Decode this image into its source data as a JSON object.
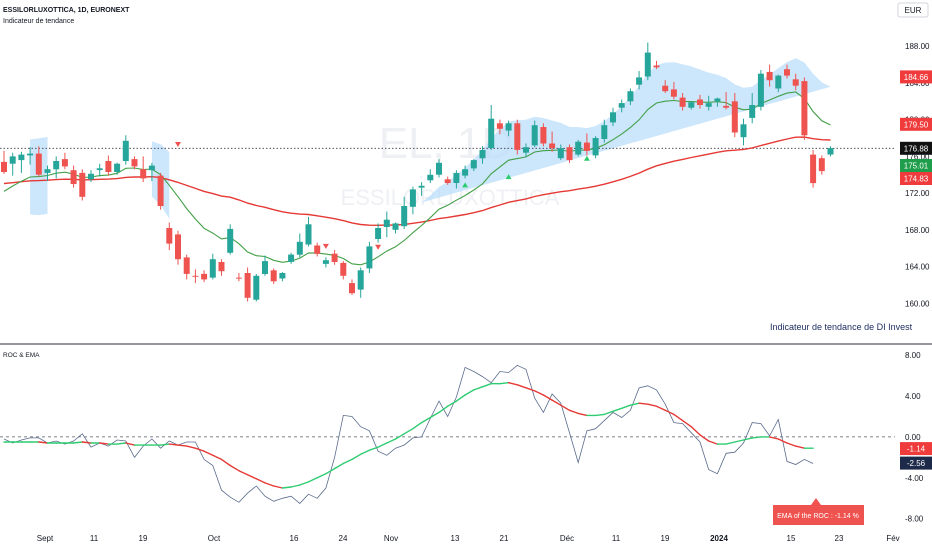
{
  "header": {
    "symbol_line": "ESSILORLUXOTTICA, 1D, EURONEXT",
    "indicator_line": "Indicateur de tendance",
    "currency": "EUR",
    "watermark_1": "EL, 1D",
    "watermark_2": "ESSILORLUXOTTICA"
  },
  "annotations": {
    "trend_caption": "Indicateur de tendance de  DI Invest",
    "lower_title": "ROC & EMA",
    "roc_ema_box": "EMA of the ROC : -1.14 %"
  },
  "colors": {
    "up": "#26a69a",
    "down": "#ef5350",
    "ema_slow": "#e53935",
    "ema_fast": "#43a047",
    "band": "#bbdefb",
    "roc": "#5b6b8c",
    "roc_ema_up": "#2ecc71",
    "roc_ema_down": "#e53935"
  },
  "price_labels": [
    {
      "text": "184.66",
      "value": 184.66,
      "color": "#ef3b3b"
    },
    {
      "text": "179.50",
      "value": 179.5,
      "color": "#ef3b3b"
    },
    {
      "text": "176.88",
      "value": 176.88,
      "color": "#111111"
    },
    {
      "text": "175.01",
      "value": 175.01,
      "color": "#1e9e4a"
    },
    {
      "text": "174.83",
      "value": 174.83,
      "color": "#ef3b3b"
    }
  ],
  "roc_labels": [
    {
      "text": "-1.14",
      "value": -1.14,
      "color": "#ef3b3b"
    },
    {
      "text": "-2.56",
      "value": -2.56,
      "color": "#1e2a4a"
    }
  ],
  "chart_data": {
    "type": "candlestick",
    "price_axis": {
      "ticks": [
        "188.00",
        "184.00",
        "180.00",
        "176.00",
        "172.00",
        "168.00",
        "164.00",
        "160.00"
      ],
      "values": [
        188,
        184,
        180,
        176,
        172,
        168,
        164,
        160
      ],
      "ylim": [
        158.4,
        190.2
      ]
    },
    "roc_axis": {
      "ticks": [
        "8.00",
        "4.00",
        "0.00",
        "-4.00",
        "-8.00"
      ],
      "values": [
        8,
        4,
        0,
        -4,
        -8
      ],
      "ylim": [
        -9.3,
        8.5
      ]
    },
    "x_labels": [
      "Sept",
      "11",
      "19",
      "Oct",
      "16",
      "24",
      "Nov",
      "13",
      "21",
      "Déc",
      "11",
      "19",
      "2024",
      "15",
      "23",
      "Fév"
    ],
    "candles": [
      {
        "o": 175.4,
        "h": 176.6,
        "l": 174.1,
        "c": 174.3
      },
      {
        "o": 175.2,
        "h": 176.4,
        "l": 173.9,
        "c": 176.0
      },
      {
        "o": 175.6,
        "h": 176.5,
        "l": 174.2,
        "c": 176.2
      },
      {
        "o": 176.1,
        "h": 177.0,
        "l": 175.1,
        "c": 176.3
      },
      {
        "o": 176.3,
        "h": 177.1,
        "l": 173.8,
        "c": 174.0
      },
      {
        "o": 174.2,
        "h": 175.0,
        "l": 173.3,
        "c": 174.6
      },
      {
        "o": 174.6,
        "h": 176.0,
        "l": 173.6,
        "c": 175.5
      },
      {
        "o": 175.7,
        "h": 176.4,
        "l": 174.6,
        "c": 174.9
      },
      {
        "o": 174.5,
        "h": 175.0,
        "l": 172.6,
        "c": 173.0
      },
      {
        "o": 174.2,
        "h": 174.6,
        "l": 171.2,
        "c": 171.6
      },
      {
        "o": 173.5,
        "h": 174.5,
        "l": 173.2,
        "c": 174.1
      },
      {
        "o": 174.5,
        "h": 175.2,
        "l": 173.8,
        "c": 174.7
      },
      {
        "o": 175.5,
        "h": 176.1,
        "l": 173.9,
        "c": 174.3
      },
      {
        "o": 174.3,
        "h": 175.3,
        "l": 174.0,
        "c": 175.2
      },
      {
        "o": 175.5,
        "h": 178.3,
        "l": 175.1,
        "c": 177.7
      },
      {
        "o": 175.7,
        "h": 176.0,
        "l": 174.6,
        "c": 174.9
      },
      {
        "o": 174.6,
        "h": 176.0,
        "l": 173.2,
        "c": 173.6
      },
      {
        "o": 174.5,
        "h": 175.3,
        "l": 173.3,
        "c": 175.0
      },
      {
        "o": 173.9,
        "h": 174.2,
        "l": 170.2,
        "c": 170.6
      },
      {
        "o": 168.2,
        "h": 168.8,
        "l": 165.8,
        "c": 166.5
      },
      {
        "o": 167.5,
        "h": 167.9,
        "l": 164.2,
        "c": 164.8
      },
      {
        "o": 165.0,
        "h": 165.3,
        "l": 162.6,
        "c": 163.2
      },
      {
        "o": 163.0,
        "h": 163.7,
        "l": 162.2,
        "c": 162.9
      },
      {
        "o": 163.2,
        "h": 163.6,
        "l": 162.3,
        "c": 162.6
      },
      {
        "o": 162.8,
        "h": 165.4,
        "l": 162.6,
        "c": 164.8
      },
      {
        "o": 164.5,
        "h": 164.8,
        "l": 163.0,
        "c": 163.5
      },
      {
        "o": 165.5,
        "h": 168.6,
        "l": 165.3,
        "c": 168.1
      },
      {
        "o": 162.8,
        "h": 163.3,
        "l": 162.4,
        "c": 162.7
      },
      {
        "o": 163.3,
        "h": 163.9,
        "l": 160.2,
        "c": 160.6
      },
      {
        "o": 160.4,
        "h": 163.2,
        "l": 160.2,
        "c": 163.0
      },
      {
        "o": 163.2,
        "h": 165.2,
        "l": 163.0,
        "c": 164.6
      },
      {
        "o": 163.6,
        "h": 163.8,
        "l": 162.1,
        "c": 162.4
      },
      {
        "o": 162.7,
        "h": 163.4,
        "l": 162.4,
        "c": 163.3
      },
      {
        "o": 164.5,
        "h": 165.5,
        "l": 164.3,
        "c": 165.3
      },
      {
        "o": 165.3,
        "h": 167.6,
        "l": 165.0,
        "c": 166.7
      },
      {
        "o": 166.4,
        "h": 169.4,
        "l": 166.2,
        "c": 168.6
      },
      {
        "o": 166.3,
        "h": 166.6,
        "l": 165.1,
        "c": 165.4
      },
      {
        "o": 164.3,
        "h": 165.0,
        "l": 163.9,
        "c": 164.7
      },
      {
        "o": 165.4,
        "h": 165.8,
        "l": 164.2,
        "c": 164.5
      },
      {
        "o": 164.4,
        "h": 164.6,
        "l": 162.6,
        "c": 163.0
      },
      {
        "o": 162.2,
        "h": 162.6,
        "l": 160.9,
        "c": 161.1
      },
      {
        "o": 161.5,
        "h": 163.9,
        "l": 160.6,
        "c": 163.6
      },
      {
        "o": 163.8,
        "h": 166.7,
        "l": 163.3,
        "c": 166.2
      },
      {
        "o": 167.0,
        "h": 168.7,
        "l": 166.6,
        "c": 168.2
      },
      {
        "o": 168.3,
        "h": 170.0,
        "l": 167.2,
        "c": 169.1
      },
      {
        "o": 168.0,
        "h": 168.8,
        "l": 167.6,
        "c": 168.7
      },
      {
        "o": 168.4,
        "h": 171.6,
        "l": 168.1,
        "c": 170.6
      },
      {
        "o": 170.5,
        "h": 172.7,
        "l": 169.7,
        "c": 172.4
      },
      {
        "o": 172.6,
        "h": 173.2,
        "l": 171.7,
        "c": 172.8
      },
      {
        "o": 173.4,
        "h": 174.6,
        "l": 173.1,
        "c": 174.0
      },
      {
        "o": 174.0,
        "h": 175.7,
        "l": 173.7,
        "c": 175.3
      },
      {
        "o": 173.5,
        "h": 173.8,
        "l": 172.9,
        "c": 173.1
      },
      {
        "o": 173.1,
        "h": 174.5,
        "l": 172.5,
        "c": 174.2
      },
      {
        "o": 173.9,
        "h": 175.0,
        "l": 173.6,
        "c": 174.6
      },
      {
        "o": 174.7,
        "h": 175.7,
        "l": 174.4,
        "c": 175.6
      },
      {
        "o": 175.8,
        "h": 177.1,
        "l": 175.2,
        "c": 176.7
      },
      {
        "o": 176.9,
        "h": 181.6,
        "l": 176.7,
        "c": 180.1
      },
      {
        "o": 179.6,
        "h": 180.0,
        "l": 178.4,
        "c": 179.0
      },
      {
        "o": 178.8,
        "h": 179.9,
        "l": 178.2,
        "c": 179.6
      },
      {
        "o": 179.6,
        "h": 180.0,
        "l": 176.2,
        "c": 176.7
      },
      {
        "o": 176.4,
        "h": 177.4,
        "l": 175.9,
        "c": 177.0
      },
      {
        "o": 177.2,
        "h": 179.9,
        "l": 177.0,
        "c": 179.4
      },
      {
        "o": 179.2,
        "h": 179.6,
        "l": 177.1,
        "c": 177.4
      },
      {
        "o": 177.4,
        "h": 178.7,
        "l": 176.5,
        "c": 176.9
      },
      {
        "o": 175.8,
        "h": 177.3,
        "l": 175.6,
        "c": 176.9
      },
      {
        "o": 177.0,
        "h": 177.3,
        "l": 175.3,
        "c": 175.6
      },
      {
        "o": 176.2,
        "h": 177.8,
        "l": 176.0,
        "c": 177.6
      },
      {
        "o": 177.5,
        "h": 178.5,
        "l": 176.1,
        "c": 176.6
      },
      {
        "o": 176.1,
        "h": 178.2,
        "l": 175.8,
        "c": 178.0
      },
      {
        "o": 177.9,
        "h": 180.0,
        "l": 177.5,
        "c": 179.4
      },
      {
        "o": 179.7,
        "h": 181.3,
        "l": 179.3,
        "c": 180.8
      },
      {
        "o": 181.3,
        "h": 182.2,
        "l": 180.8,
        "c": 181.8
      },
      {
        "o": 182.0,
        "h": 183.4,
        "l": 181.6,
        "c": 183.1
      },
      {
        "o": 183.8,
        "h": 185.3,
        "l": 183.3,
        "c": 184.6
      },
      {
        "o": 184.7,
        "h": 188.4,
        "l": 184.3,
        "c": 187.3
      },
      {
        "o": 185.9,
        "h": 186.4,
        "l": 185.5,
        "c": 185.7
      },
      {
        "o": 183.7,
        "h": 184.3,
        "l": 182.9,
        "c": 183.1
      },
      {
        "o": 183.3,
        "h": 184.1,
        "l": 182.2,
        "c": 182.5
      },
      {
        "o": 182.4,
        "h": 182.9,
        "l": 181.0,
        "c": 181.4
      },
      {
        "o": 181.3,
        "h": 182.0,
        "l": 181.1,
        "c": 181.9
      },
      {
        "o": 182.2,
        "h": 182.7,
        "l": 181.2,
        "c": 181.6
      },
      {
        "o": 181.4,
        "h": 182.6,
        "l": 181.0,
        "c": 181.8
      },
      {
        "o": 182.0,
        "h": 182.4,
        "l": 181.4,
        "c": 182.3
      },
      {
        "o": 181.5,
        "h": 183.0,
        "l": 181.1,
        "c": 181.3
      },
      {
        "o": 182.0,
        "h": 182.9,
        "l": 178.1,
        "c": 178.6
      },
      {
        "o": 178.1,
        "h": 180.1,
        "l": 177.2,
        "c": 179.5
      },
      {
        "o": 180.2,
        "h": 182.9,
        "l": 179.6,
        "c": 181.6
      },
      {
        "o": 181.4,
        "h": 185.4,
        "l": 181.0,
        "c": 185.0
      },
      {
        "o": 185.2,
        "h": 186.0,
        "l": 183.6,
        "c": 184.3
      },
      {
        "o": 183.4,
        "h": 184.9,
        "l": 183.0,
        "c": 184.8
      },
      {
        "o": 185.5,
        "h": 186.0,
        "l": 184.5,
        "c": 184.8
      },
      {
        "o": 184.4,
        "h": 185.0,
        "l": 183.2,
        "c": 183.7
      },
      {
        "o": 184.2,
        "h": 184.6,
        "l": 177.8,
        "c": 178.3
      },
      {
        "o": 176.2,
        "h": 176.7,
        "l": 172.6,
        "c": 173.1
      },
      {
        "o": 175.8,
        "h": 176.1,
        "l": 174.0,
        "c": 174.4
      },
      {
        "o": 176.2,
        "h": 177.1,
        "l": 176.0,
        "c": 176.9
      }
    ],
    "band_segments": [
      [
        3,
        5
      ],
      [
        17,
        19
      ],
      [
        48,
        96
      ]
    ],
    "down_markers": [
      [
        20,
        177.3
      ],
      [
        37,
        166.2
      ],
      [
        43,
        166.1
      ]
    ],
    "up_markers": [
      [
        53,
        172.9
      ],
      [
        58,
        173.8
      ],
      [
        67,
        175.8
      ]
    ],
    "roc": [
      -0.2,
      -0.6,
      -0.3,
      -0.1,
      -0.1,
      -0.6,
      -0.4,
      -0.7,
      -0.4,
      0.3,
      -1.0,
      -0.6,
      -0.9,
      -0.3,
      -0.4,
      -2.0,
      -0.9,
      -0.2,
      -1.1,
      -0.4,
      -0.8,
      -0.5,
      -0.5,
      -2.2,
      -2.8,
      -5.2,
      -5.9,
      -6.4,
      -5.5,
      -4.8,
      -5.8,
      -6.3,
      -6.0,
      -5.8,
      -6.5,
      -5.6,
      -6.0,
      -5.0,
      -2.0,
      2.1,
      2.0,
      1.0,
      0.6,
      -1.4,
      -1.8,
      -1.1,
      -0.8,
      -0.1,
      0.0,
      1.8,
      3.5,
      2.0,
      3.9,
      6.8,
      6.4,
      5.9,
      5.3,
      6.4,
      6.3,
      7.0,
      6.6,
      3.8,
      2.4,
      4.2,
      3.3,
      0.4,
      -2.5,
      0.6,
      0.8,
      1.6,
      2.4,
      1.9,
      2.6,
      4.8,
      5.0,
      4.6,
      3.2,
      1.4,
      1.3,
      0.4,
      -0.5,
      -3.2,
      -3.6,
      -1.6,
      -1.5,
      -0.6,
      1.4,
      1.3,
      0.1,
      1.7,
      -2.4,
      -2.7,
      -2.2,
      -2.6
    ],
    "roc_ema": [
      -0.5,
      -0.5,
      -0.5,
      -0.5,
      -0.5,
      -0.6,
      -0.6,
      -0.6,
      -0.6,
      -0.5,
      -0.6,
      -0.6,
      -0.7,
      -0.7,
      -0.6,
      -0.8,
      -0.8,
      -0.8,
      -0.8,
      -0.7,
      -0.8,
      -0.9,
      -1.1,
      -1.4,
      -1.8,
      -2.2,
      -2.8,
      -3.3,
      -3.7,
      -4.1,
      -4.5,
      -4.8,
      -5.0,
      -4.9,
      -4.7,
      -4.4,
      -4.0,
      -3.6,
      -3.1,
      -2.6,
      -2.2,
      -1.7,
      -1.3,
      -1.0,
      -0.6,
      -0.2,
      0.3,
      0.8,
      1.4,
      1.9,
      2.4,
      3.0,
      3.5,
      4.1,
      4.6,
      4.9,
      5.2,
      5.2,
      5.3,
      5.1,
      4.8,
      4.5,
      4.1,
      3.6,
      3.1,
      2.6,
      2.3,
      2.1,
      2.1,
      2.2,
      2.5,
      2.8,
      3.1,
      3.3,
      3.2,
      3.0,
      2.6,
      2.2,
      1.6,
      1.0,
      0.2,
      -0.4,
      -0.7,
      -0.7,
      -0.5,
      -0.3,
      -0.1,
      0.0,
      0.0,
      -0.2,
      -0.6,
      -0.9,
      -1.1,
      -1.1
    ]
  }
}
